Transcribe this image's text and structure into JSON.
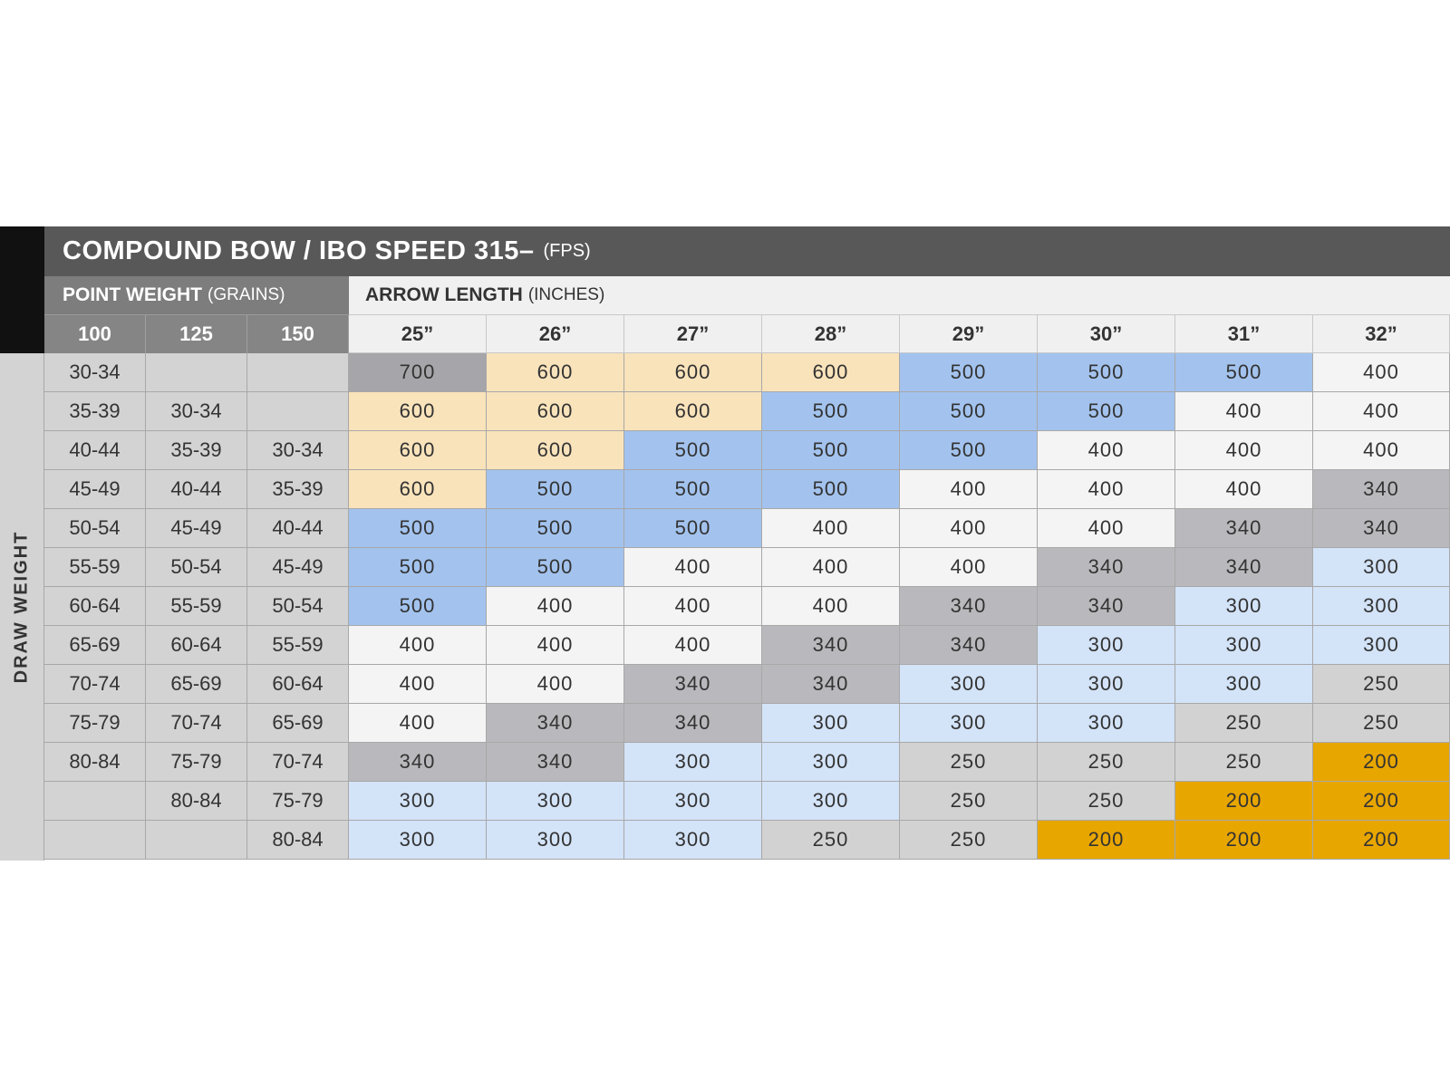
{
  "chart_data": {
    "type": "table",
    "title": "COMPOUND BOW / IBO SPEED 315–",
    "title_unit": "(FPS)",
    "point_weight_label": "POINT WEIGHT",
    "point_weight_unit": "(GRAINS)",
    "arrow_length_label": "ARROW LENGTH",
    "arrow_length_unit": "(INCHES)",
    "draw_weight_label": "DRAW WEIGHT",
    "point_weights": [
      "100",
      "125",
      "150"
    ],
    "arrow_lengths": [
      "25”",
      "26”",
      "27”",
      "28”",
      "29”",
      "30”",
      "31”",
      "32”"
    ],
    "draw_weights": [
      [
        "30-34",
        "",
        ""
      ],
      [
        "35-39",
        "30-34",
        ""
      ],
      [
        "40-44",
        "35-39",
        "30-34"
      ],
      [
        "45-49",
        "40-44",
        "35-39"
      ],
      [
        "50-54",
        "45-49",
        "40-44"
      ],
      [
        "55-59",
        "50-54",
        "45-49"
      ],
      [
        "60-64",
        "55-59",
        "50-54"
      ],
      [
        "65-69",
        "60-64",
        "55-59"
      ],
      [
        "70-74",
        "65-69",
        "60-64"
      ],
      [
        "75-79",
        "70-74",
        "65-69"
      ],
      [
        "80-84",
        "75-79",
        "70-74"
      ],
      [
        "",
        "80-84",
        "75-79"
      ],
      [
        "",
        "",
        "80-84"
      ]
    ],
    "spine_values": [
      [
        "700",
        "600",
        "600",
        "600",
        "500",
        "500",
        "500",
        "400"
      ],
      [
        "600",
        "600",
        "600",
        "500",
        "500",
        "500",
        "400",
        "400"
      ],
      [
        "600",
        "600",
        "500",
        "500",
        "500",
        "400",
        "400",
        "400"
      ],
      [
        "600",
        "500",
        "500",
        "500",
        "400",
        "400",
        "400",
        "340"
      ],
      [
        "500",
        "500",
        "500",
        "400",
        "400",
        "400",
        "340",
        "340"
      ],
      [
        "500",
        "500",
        "400",
        "400",
        "400",
        "340",
        "340",
        "300"
      ],
      [
        "500",
        "400",
        "400",
        "400",
        "340",
        "340",
        "300",
        "300"
      ],
      [
        "400",
        "400",
        "400",
        "340",
        "340",
        "300",
        "300",
        "300"
      ],
      [
        "400",
        "400",
        "340",
        "340",
        "300",
        "300",
        "300",
        "250"
      ],
      [
        "400",
        "340",
        "340",
        "300",
        "300",
        "300",
        "250",
        "250"
      ],
      [
        "340",
        "340",
        "300",
        "300",
        "250",
        "250",
        "250",
        "200"
      ],
      [
        "300",
        "300",
        "300",
        "300",
        "250",
        "250",
        "200",
        "200"
      ],
      [
        "300",
        "300",
        "300",
        "250",
        "250",
        "200",
        "200",
        "200"
      ]
    ],
    "spine_colors": {
      "700": "#a6a6aa",
      "600": "#f9e3bb",
      "500": "#a3c3ee",
      "400": "#f4f4f4",
      "340": "#b9b9bd",
      "300": "#d3e3f8",
      "250": "#d2d2d2",
      "200": "#e8a600"
    }
  }
}
